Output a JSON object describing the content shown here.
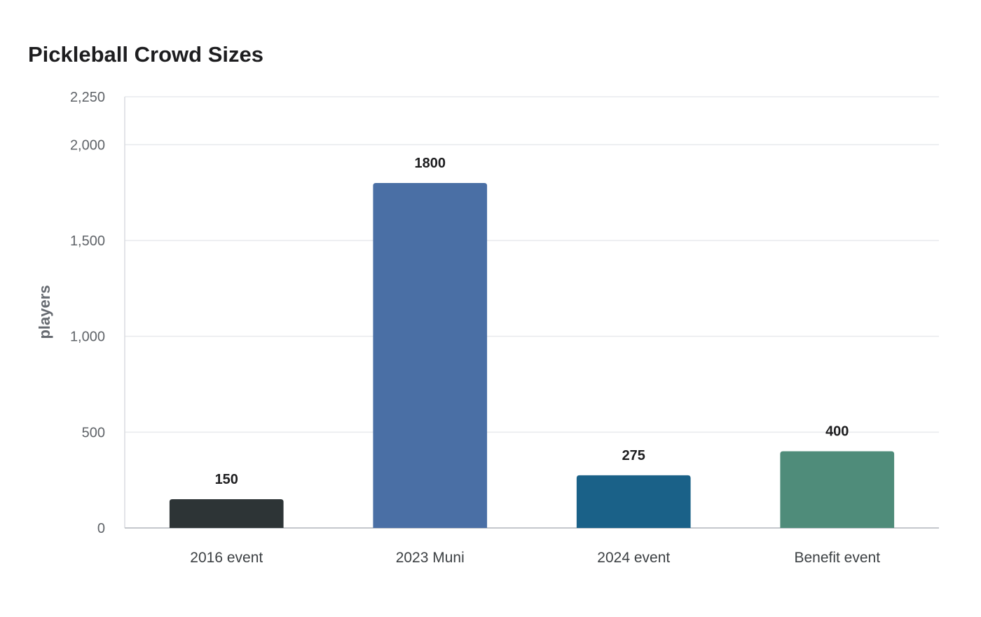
{
  "chart_data": {
    "type": "bar",
    "title": "Pickleball Crowd Sizes",
    "xlabel": "",
    "ylabel": "players",
    "categories": [
      "2016 event",
      "2023 Muni",
      "2024 event",
      "Benefit event"
    ],
    "values": [
      150,
      1800,
      275,
      400
    ],
    "value_labels": [
      "150",
      "1800",
      "275",
      "400"
    ],
    "colors": [
      "#2d3436",
      "#4a6fa5",
      "#1a6188",
      "#4f8c7a"
    ],
    "ylim": [
      0,
      2250
    ],
    "yticks": [
      0,
      500,
      1000,
      1500,
      2000,
      2250
    ],
    "ytick_labels": [
      "0",
      "500",
      "1,000",
      "1,500",
      "2,000",
      "2,250"
    ],
    "grid": true,
    "legend": "none"
  }
}
